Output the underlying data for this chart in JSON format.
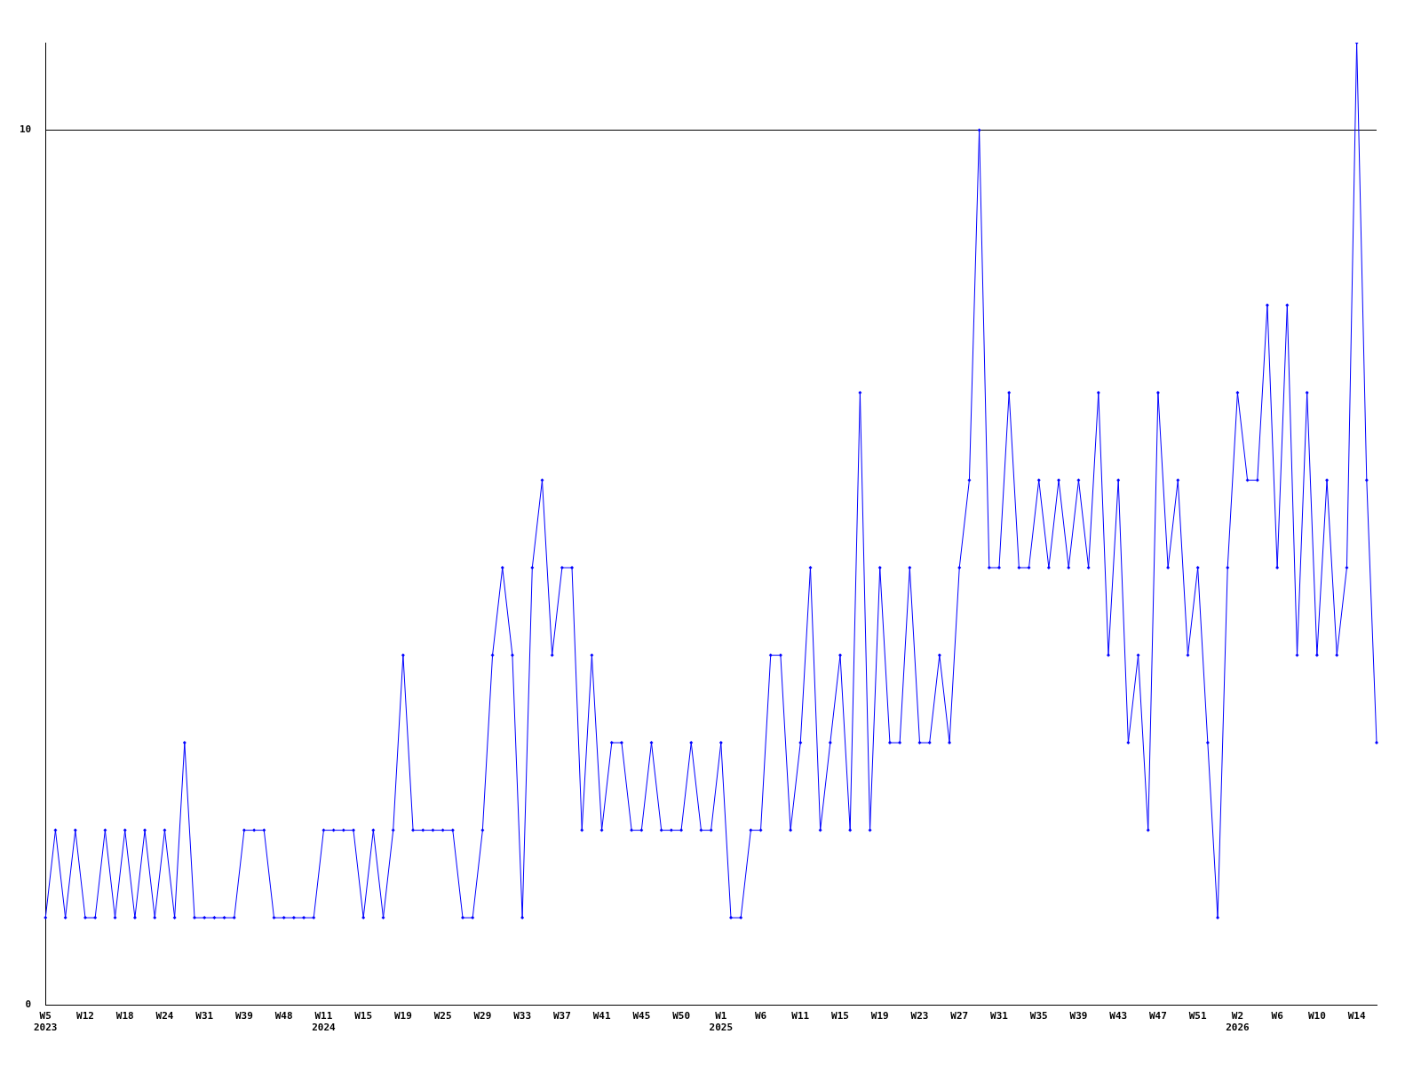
{
  "chart_data": {
    "type": "line",
    "categories": [
      "W5\n2023",
      null,
      null,
      null,
      "W12",
      null,
      null,
      null,
      "W18",
      null,
      null,
      null,
      "W24",
      null,
      null,
      null,
      "W31",
      null,
      null,
      null,
      "W39",
      null,
      null,
      null,
      "W48",
      null,
      null,
      null,
      "W11\n2024",
      null,
      null,
      null,
      "W15",
      null,
      null,
      null,
      "W19",
      null,
      null,
      null,
      "W25",
      null,
      null,
      null,
      "W29",
      null,
      null,
      null,
      "W33",
      null,
      null,
      null,
      "W37",
      null,
      null,
      null,
      "W41",
      null,
      null,
      null,
      "W45",
      null,
      null,
      null,
      "W50",
      null,
      null,
      null,
      "W1\n2025",
      null,
      null,
      null,
      "W6",
      null,
      null,
      null,
      "W11",
      null,
      null,
      null,
      "W15",
      null,
      null,
      null,
      "W19",
      null,
      null,
      null,
      "W23",
      null,
      null,
      null,
      "W27",
      null,
      null,
      null,
      "W31",
      null,
      null,
      null,
      "W35",
      null,
      null,
      null,
      "W39",
      null,
      null,
      null,
      "W43",
      null,
      null,
      null,
      "W47",
      null,
      null,
      null,
      "W51",
      null,
      null,
      null,
      "W2\n2026",
      null,
      null,
      null,
      "W6",
      null,
      null,
      null,
      "W10",
      null,
      null,
      null,
      "W14",
      null,
      null
    ],
    "series": [
      {
        "color": "#0000ff",
        "values": [
          1,
          2,
          1,
          2,
          1,
          1,
          2,
          1,
          2,
          1,
          2,
          1,
          2,
          1,
          3,
          1,
          1,
          1,
          1,
          1,
          2,
          2,
          2,
          1,
          1,
          1,
          1,
          1,
          2,
          2,
          2,
          2,
          1,
          2,
          1,
          2,
          4,
          2,
          2,
          2,
          2,
          2,
          1,
          1,
          2,
          4,
          5,
          4,
          1,
          5,
          6,
          4,
          5,
          5,
          2,
          4,
          2,
          3,
          3,
          2,
          2,
          3,
          2,
          2,
          2,
          3,
          2,
          2,
          3,
          1,
          1,
          2,
          2,
          4,
          4,
          2,
          3,
          5,
          2,
          3,
          4,
          2,
          7,
          2,
          5,
          3,
          3,
          5,
          3,
          3,
          4,
          3,
          5,
          6,
          10,
          5,
          5,
          7,
          5,
          5,
          6,
          5,
          6,
          5,
          6,
          5,
          7,
          4,
          6,
          3,
          4,
          2,
          7,
          5,
          6,
          4,
          5,
          3,
          1,
          5,
          7,
          6,
          6,
          8,
          5,
          8,
          4,
          7,
          4,
          6,
          4,
          5,
          11,
          6,
          3
        ]
      }
    ],
    "ylim": [
      0,
      11
    ],
    "yticks": [
      0,
      10
    ],
    "grid": "y",
    "legend": false,
    "marker": "diamond",
    "line_style": "solid"
  }
}
